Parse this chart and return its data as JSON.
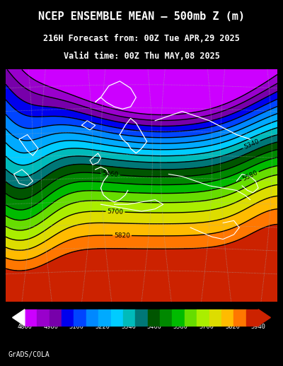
{
  "title_line1": "NCEP ENSEMBLE MEAN – 500mb Z (m)",
  "title_line2": "216H Forecast from: 00Z Tue APR,29 2025",
  "title_line3": "Valid time: 00Z Thu MAY,08 2025",
  "colorbar_values": [
    4860,
    4980,
    5100,
    5220,
    5340,
    5460,
    5580,
    5700,
    5820,
    5940
  ],
  "background_color": "#000000",
  "footer_text": "GrADS/COLA",
  "colors_list": [
    "#CC00FF",
    "#9900CC",
    "#7700AA",
    "#0000EE",
    "#0044FF",
    "#0088FF",
    "#00AAFF",
    "#00CCFF",
    "#00BBBB",
    "#007777",
    "#005500",
    "#008800",
    "#00BB00",
    "#66DD00",
    "#AAEE00",
    "#DDDD00",
    "#FFBB00",
    "#FF7700",
    "#CC2200"
  ],
  "boundaries": [
    4820,
    4860,
    4920,
    4980,
    5040,
    5100,
    5160,
    5220,
    5280,
    5340,
    5400,
    5460,
    5520,
    5580,
    5640,
    5700,
    5760,
    5820,
    5880,
    5940
  ]
}
